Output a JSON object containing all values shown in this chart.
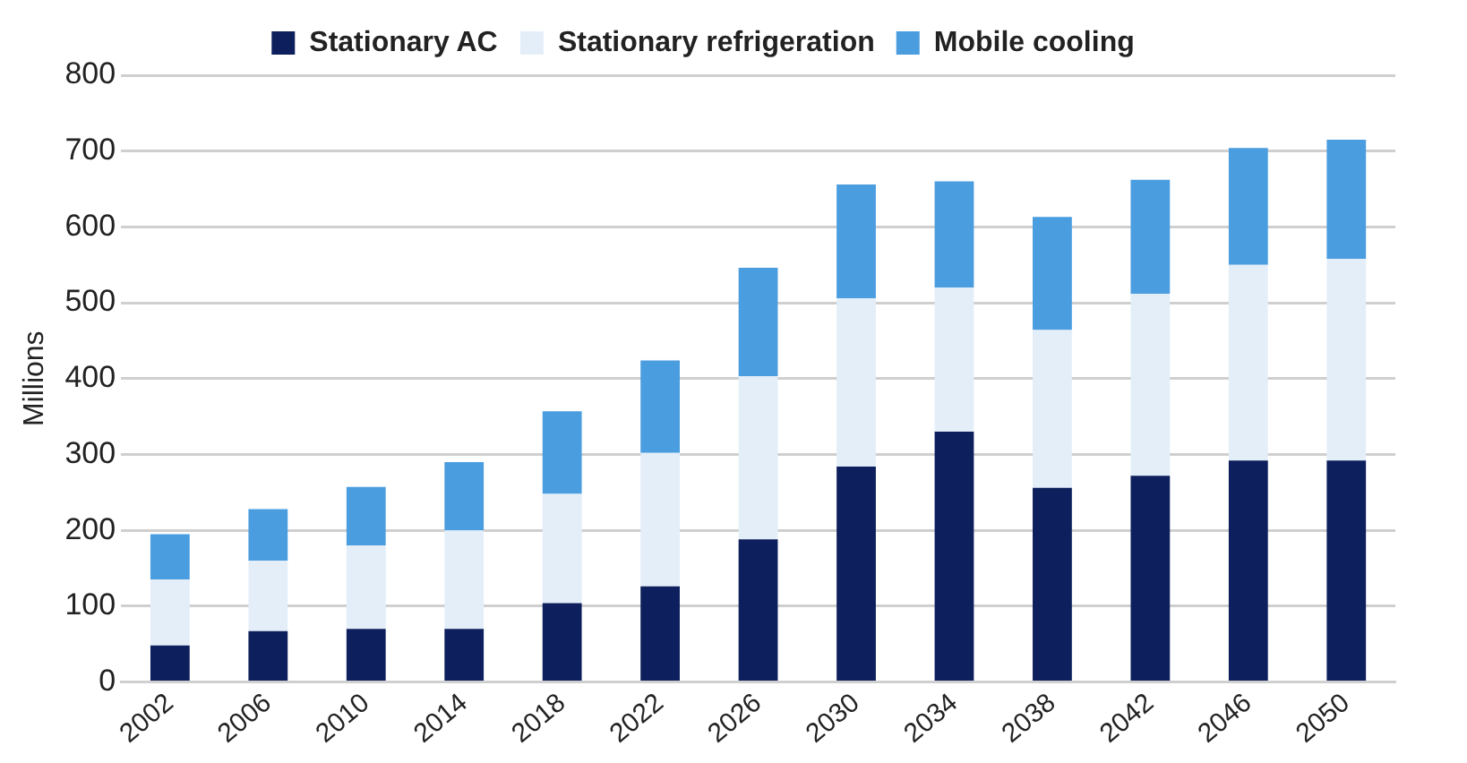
{
  "chart_data": {
    "type": "bar",
    "ylabel": "Millions",
    "stacked": true,
    "legend": "top",
    "grid": "y",
    "categories": [
      "2002",
      "2006",
      "2010",
      "2014",
      "2018",
      "2022",
      "2026",
      "2030",
      "2034",
      "2038",
      "2042",
      "2046",
      "2050"
    ],
    "ylim": [
      0,
      800
    ],
    "yticks": [
      0,
      100,
      200,
      300,
      400,
      500,
      600,
      700,
      800
    ],
    "series": [
      {
        "name": "Stationary AC",
        "color": "#0d1f5c",
        "values": [
          48,
          67,
          70,
          70,
          104,
          126,
          188,
          284,
          330,
          256,
          272,
          292,
          292
        ]
      },
      {
        "name": "Stationary refrigeration",
        "color": "#e3eef9",
        "values": [
          87,
          93,
          110,
          130,
          144,
          176,
          215,
          222,
          190,
          208,
          240,
          258,
          266
        ]
      },
      {
        "name": "Mobile cooling",
        "color": "#4a9ddf",
        "values": [
          60,
          68,
          77,
          90,
          109,
          122,
          143,
          150,
          140,
          149,
          150,
          154,
          157
        ]
      }
    ]
  }
}
